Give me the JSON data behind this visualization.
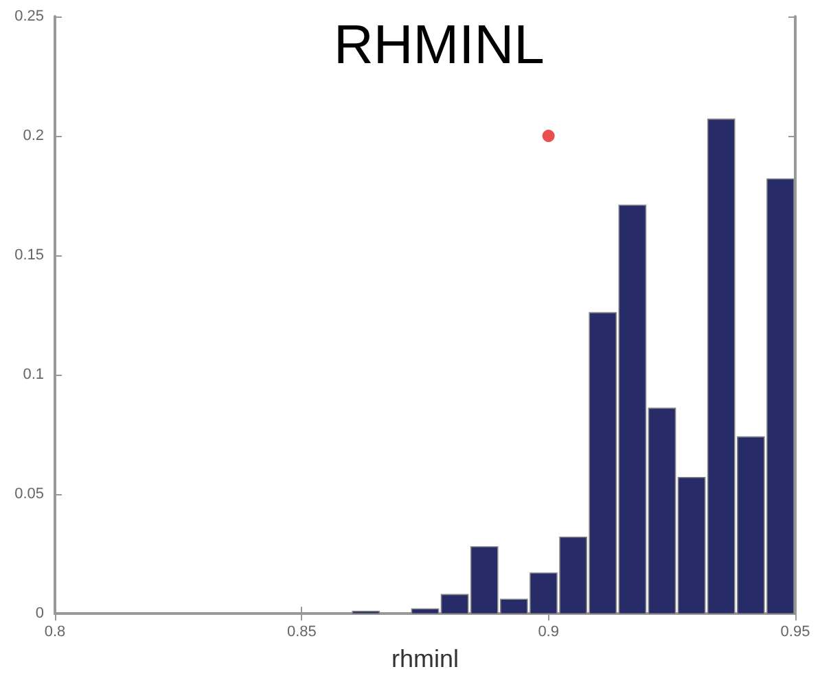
{
  "chart_data": {
    "type": "histogram",
    "title": "RHMINL",
    "xlabel": "rhminl",
    "bins": [
      0.86,
      0.866,
      0.872,
      0.878,
      0.884,
      0.89,
      0.896,
      0.902,
      0.908,
      0.914,
      0.92,
      0.926,
      0.932,
      0.938,
      0.944,
      0.95
    ],
    "values": [
      0.001,
      0,
      0.002,
      0.008,
      0.028,
      0.006,
      0.017,
      0.032,
      0.126,
      0.171,
      0.086,
      0.057,
      0.207,
      0.074,
      0.182
    ],
    "color": "#272b67",
    "series": [
      {
        "type": "scatter",
        "x": [
          0.9
        ],
        "values": [
          0.2
        ],
        "color": "#e52222"
      }
    ],
    "xlim": [
      0.8,
      0.95
    ],
    "xticks": [
      0.8,
      0.85,
      0.9,
      0.95
    ],
    "ylim": [
      0,
      0.25
    ],
    "yticks": [
      0,
      0.05,
      0.1,
      0.15,
      0.2,
      0.25
    ],
    "grid": false,
    "marker": "circle"
  }
}
